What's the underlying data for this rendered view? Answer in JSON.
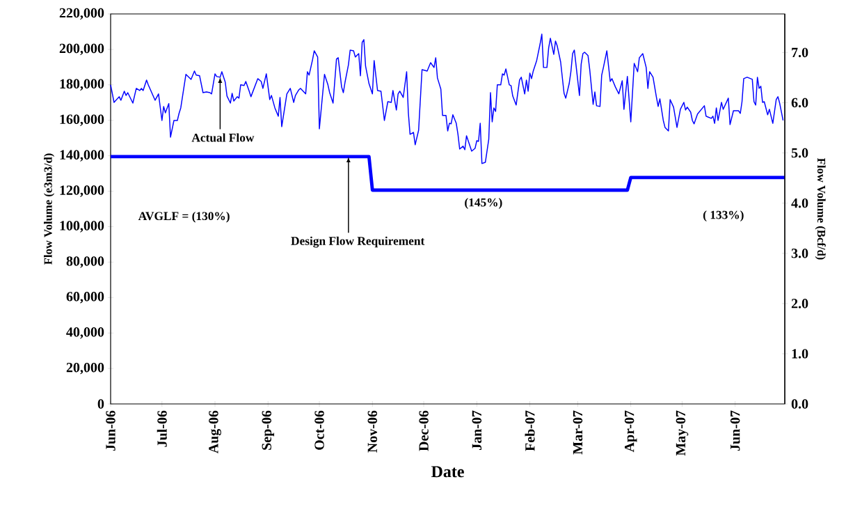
{
  "chart_data": {
    "type": "line",
    "xlabel": "Date",
    "ylabel": "Flow Volume (e3m3/d)",
    "y2label": "Flow Volume (Bcf/d)",
    "xlim": [
      "2006-06-01",
      "2007-06-30"
    ],
    "xticks": [
      {
        "value": "2006-06-01",
        "label": "Jun-06"
      },
      {
        "value": "2006-07-01",
        "label": "Jul-06"
      },
      {
        "value": "2006-08-01",
        "label": "Aug-06"
      },
      {
        "value": "2006-09-01",
        "label": "Sep-06"
      },
      {
        "value": "2006-10-01",
        "label": "Oct-06"
      },
      {
        "value": "2006-11-01",
        "label": "Nov-06"
      },
      {
        "value": "2006-12-01",
        "label": "Dec-06"
      },
      {
        "value": "2007-01-01",
        "label": "Jan-07"
      },
      {
        "value": "2007-02-01",
        "label": "Feb-07"
      },
      {
        "value": "2007-03-01",
        "label": "Mar-07"
      },
      {
        "value": "2007-04-01",
        "label": "Apr-07"
      },
      {
        "value": "2007-05-01",
        "label": "May-07"
      },
      {
        "value": "2007-06-01",
        "label": "Jun-07"
      }
    ],
    "ylim": [
      0,
      220000
    ],
    "yticks": [
      {
        "value": 0,
        "label": "0"
      },
      {
        "value": 20000,
        "label": "20,000"
      },
      {
        "value": 40000,
        "label": "40,000"
      },
      {
        "value": 60000,
        "label": "60,000"
      },
      {
        "value": 80000,
        "label": "80,000"
      },
      {
        "value": 100000,
        "label": "100,000"
      },
      {
        "value": 120000,
        "label": "120,000"
      },
      {
        "value": 140000,
        "label": "140,000"
      },
      {
        "value": 160000,
        "label": "160,000"
      },
      {
        "value": 180000,
        "label": "180,000"
      },
      {
        "value": 200000,
        "label": "200,000"
      },
      {
        "value": 220000,
        "label": "220,000"
      }
    ],
    "y2lim": [
      0,
      7.769
    ],
    "y2ticks": [
      {
        "value": 0,
        "label": "0.0"
      },
      {
        "value": 1,
        "label": "1.0"
      },
      {
        "value": 2,
        "label": "2.0"
      },
      {
        "value": 3,
        "label": "3.0"
      },
      {
        "value": 4,
        "label": "4.0"
      },
      {
        "value": 5,
        "label": "5.0"
      },
      {
        "value": 6,
        "label": "6.0"
      },
      {
        "value": 7,
        "label": "7.0"
      }
    ],
    "line_style": "solid",
    "marker": "none",
    "series": [
      {
        "color": "#0000ff",
        "x": [
          "2006-06-01",
          "2006-06-03",
          "2006-06-06",
          "2006-06-07",
          "2006-06-09",
          "2006-06-10",
          "2006-06-11",
          "2006-06-14",
          "2006-06-16",
          "2006-06-18",
          "2006-06-19",
          "2006-06-20",
          "2006-06-22",
          "2006-06-23",
          "2006-06-27",
          "2006-06-29",
          "2006-07-01",
          "2006-07-02",
          "2006-07-03",
          "2006-07-05",
          "2006-07-06",
          "2006-07-08",
          "2006-07-10",
          "2006-07-11",
          "2006-07-12",
          "2006-07-15",
          "2006-07-18",
          "2006-07-20",
          "2006-07-21",
          "2006-07-23",
          "2006-07-25",
          "2006-07-27",
          "2006-07-29",
          "2006-07-30",
          "2006-08-01",
          "2006-08-02",
          "2006-08-04",
          "2006-08-05",
          "2006-08-07",
          "2006-08-08",
          "2006-08-10",
          "2006-08-11",
          "2006-08-12",
          "2006-08-14",
          "2006-08-15",
          "2006-08-16",
          "2006-08-18",
          "2006-08-19",
          "2006-08-21",
          "2006-08-22",
          "2006-08-26",
          "2006-08-28",
          "2006-08-29",
          "2006-08-31",
          "2006-09-02",
          "2006-09-03",
          "2006-09-05",
          "2006-09-07",
          "2006-09-08",
          "2006-09-09",
          "2006-09-12",
          "2006-09-14",
          "2006-09-16",
          "2006-09-17",
          "2006-09-19",
          "2006-09-20",
          "2006-09-23",
          "2006-09-24",
          "2006-09-25",
          "2006-09-27",
          "2006-09-28",
          "2006-09-30",
          "2006-10-01",
          "2006-10-04",
          "2006-10-06",
          "2006-10-07",
          "2006-10-09",
          "2006-10-11",
          "2006-10-12",
          "2006-10-14",
          "2006-10-15",
          "2006-10-16",
          "2006-10-18",
          "2006-10-19",
          "2006-10-21",
          "2006-10-22",
          "2006-10-24",
          "2006-10-25",
          "2006-10-26",
          "2006-10-27",
          "2006-10-28",
          "2006-10-30",
          "2006-11-01",
          "2006-11-02",
          "2006-11-04",
          "2006-11-06",
          "2006-11-08",
          "2006-11-10",
          "2006-11-12",
          "2006-11-13",
          "2006-11-15",
          "2006-11-16",
          "2006-11-17",
          "2006-11-19",
          "2006-11-21",
          "2006-11-22",
          "2006-11-23",
          "2006-11-25",
          "2006-11-26",
          "2006-11-28",
          "2006-11-30",
          "2006-12-03",
          "2006-12-05",
          "2006-12-07",
          "2006-12-08",
          "2006-12-09",
          "2006-12-11",
          "2006-12-12",
          "2006-12-14",
          "2006-12-15",
          "2006-12-16",
          "2006-12-17",
          "2006-12-18",
          "2006-12-20",
          "2006-12-21",
          "2006-12-22",
          "2006-12-24",
          "2006-12-25",
          "2006-12-26",
          "2006-12-29",
          "2006-12-31",
          "2007-01-01",
          "2007-01-02",
          "2007-01-03",
          "2007-01-04",
          "2007-01-06",
          "2007-01-08",
          "2007-01-09",
          "2007-01-10",
          "2007-01-11",
          "2007-01-12",
          "2007-01-13",
          "2007-01-15",
          "2007-01-16",
          "2007-01-17",
          "2007-01-18",
          "2007-01-20",
          "2007-01-21",
          "2007-01-22",
          "2007-01-24",
          "2007-01-26",
          "2007-01-27",
          "2007-01-29",
          "2007-01-30",
          "2007-01-31",
          "2007-02-01",
          "2007-02-02",
          "2007-02-03",
          "2007-02-05",
          "2007-02-07",
          "2007-02-08",
          "2007-02-09",
          "2007-02-11",
          "2007-02-12",
          "2007-02-13",
          "2007-02-15",
          "2007-02-16",
          "2007-02-17",
          "2007-02-19",
          "2007-02-21",
          "2007-02-22",
          "2007-02-24",
          "2007-02-25",
          "2007-02-26",
          "2007-02-27",
          "2007-03-02",
          "2007-03-03",
          "2007-03-04",
          "2007-03-05",
          "2007-03-07",
          "2007-03-08",
          "2007-03-10",
          "2007-03-11",
          "2007-03-12",
          "2007-03-14",
          "2007-03-15",
          "2007-03-16",
          "2007-03-18",
          "2007-03-20",
          "2007-03-21",
          "2007-03-23",
          "2007-03-25",
          "2007-03-27",
          "2007-03-28",
          "2007-03-30",
          "2007-04-01",
          "2007-04-03",
          "2007-04-05",
          "2007-04-06",
          "2007-04-08",
          "2007-04-10",
          "2007-04-11",
          "2007-04-12",
          "2007-04-14",
          "2007-04-16",
          "2007-04-17",
          "2007-04-18",
          "2007-04-20",
          "2007-04-21",
          "2007-04-23",
          "2007-04-24",
          "2007-04-26",
          "2007-04-28",
          "2007-04-30",
          "2007-05-02",
          "2007-05-03",
          "2007-05-04",
          "2007-05-06",
          "2007-05-07",
          "2007-05-08",
          "2007-05-10",
          "2007-05-14",
          "2007-05-15",
          "2007-05-18",
          "2007-05-19",
          "2007-05-20",
          "2007-05-21",
          "2007-05-22",
          "2007-05-24",
          "2007-05-25",
          "2007-05-28",
          "2007-05-29",
          "2007-05-31",
          "2007-06-03",
          "2007-06-04",
          "2007-06-05",
          "2007-06-06",
          "2007-06-08",
          "2007-06-11",
          "2007-06-12",
          "2007-06-13",
          "2007-06-14",
          "2007-06-15",
          "2007-06-16",
          "2007-06-17",
          "2007-06-18",
          "2007-06-20",
          "2007-06-21",
          "2007-06-23",
          "2007-06-25",
          "2007-06-26",
          "2007-06-27",
          "2007-06-29"
        ],
        "values": [
          180000,
          170100,
          173300,
          171300,
          176400,
          174000,
          175600,
          169700,
          178000,
          176800,
          178000,
          176800,
          182700,
          180000,
          171300,
          174900,
          159900,
          167800,
          164200,
          169400,
          150500,
          159900,
          159900,
          163900,
          167000,
          185900,
          183100,
          187800,
          185500,
          185100,
          175600,
          176000,
          175600,
          174900,
          186200,
          184700,
          184300,
          187400,
          181500,
          173700,
          169700,
          175200,
          170900,
          173300,
          172500,
          180000,
          179600,
          181900,
          176400,
          173300,
          183500,
          181900,
          178000,
          186200,
          171700,
          174000,
          167000,
          162300,
          172900,
          156400,
          174900,
          178000,
          170100,
          174000,
          177200,
          178000,
          174900,
          187400,
          185500,
          194100,
          199200,
          195700,
          155200,
          185900,
          180000,
          175600,
          169700,
          194500,
          195300,
          178800,
          175600,
          181500,
          191400,
          199600,
          199200,
          195700,
          197600,
          185100,
          203900,
          205500,
          190600,
          180700,
          174900,
          193700,
          176800,
          176400,
          159900,
          170500,
          170100,
          176800,
          165800,
          174900,
          176400,
          172900,
          187400,
          164200,
          152100,
          153200,
          146200,
          154400,
          188600,
          187800,
          192500,
          189800,
          195300,
          183900,
          177600,
          162700,
          162700,
          154000,
          158300,
          158000,
          163100,
          158300,
          152100,
          143800,
          145400,
          143400,
          151300,
          142600,
          144200,
          148500,
          148100,
          158300,
          135600,
          136300,
          149300,
          175600,
          159100,
          167000,
          165000,
          180000,
          180000,
          186200,
          185500,
          189000,
          180000,
          179600,
          173700,
          168600,
          182700,
          184300,
          174900,
          182700,
          176400,
          186600,
          183500,
          187800,
          193700,
          203100,
          208600,
          189800,
          189800,
          200800,
          206300,
          197200,
          204700,
          202000,
          192900,
          175200,
          172500,
          180700,
          187400,
          197600,
          199600,
          174000,
          191700,
          197600,
          198400,
          196500,
          188600,
          169000,
          176000,
          168200,
          167800,
          185500,
          189800,
          199200,
          181900,
          183500,
          178800,
          174900,
          182300,
          166200,
          184700,
          159100,
          192100,
          187400,
          195300,
          197600,
          189800,
          178000,
          187400,
          184300,
          172900,
          167800,
          172100,
          159900,
          156000,
          154000,
          171700,
          167400,
          156000,
          166200,
          170100,
          165800,
          167400,
          164600,
          159900,
          158000,
          163500,
          168200,
          162300,
          161100,
          162300,
          158300,
          167000,
          159900,
          170100,
          166200,
          172500,
          157600,
          165400,
          165400,
          163900,
          170500,
          183500,
          184300,
          183100,
          170500,
          168600,
          184300,
          178000,
          179200,
          170100,
          170500,
          163100,
          166200,
          158300,
          171700,
          173300,
          169700,
          159900
        ]
      },
      {
        "color": "#0000ff",
        "x": [
          "2006-06-01",
          "2006-10-30",
          "2006-11-01",
          "2007-03-30",
          "2007-04-01",
          "2007-06-30"
        ],
        "values": [
          139500,
          139500,
          120600,
          120600,
          127700,
          127700
        ]
      }
    ],
    "annotations": [
      {
        "text": "Actual Flow",
        "x": "2006-08-04",
        "y": 184300
      },
      {
        "text": "Design Flow Requirement",
        "x": "2006-10-18",
        "y": 139500
      },
      "AVGLF = (130%)",
      "(145%)",
      "( 133%)"
    ]
  }
}
